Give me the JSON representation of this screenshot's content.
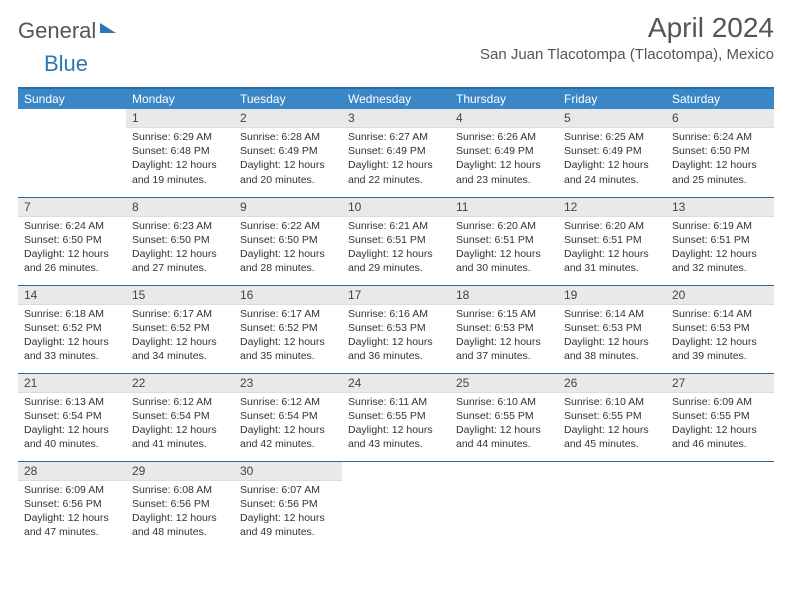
{
  "logo": {
    "text1": "General",
    "text2": "Blue"
  },
  "title": "April 2024",
  "location": "San Juan Tlacotompa (Tlacotompa), Mexico",
  "weekdays": [
    "Sunday",
    "Monday",
    "Tuesday",
    "Wednesday",
    "Thursday",
    "Friday",
    "Saturday"
  ],
  "colors": {
    "header_bg": "#3a87c8",
    "header_border": "#2a6ca0",
    "daynum_bg": "#e9e9e9",
    "cell_border": "#2a6ca0",
    "text": "#333333",
    "title": "#555555"
  },
  "weeks": [
    [
      {
        "day": null
      },
      {
        "day": "1",
        "sunrise": "Sunrise: 6:29 AM",
        "sunset": "Sunset: 6:48 PM",
        "daylight1": "Daylight: 12 hours",
        "daylight2": "and 19 minutes."
      },
      {
        "day": "2",
        "sunrise": "Sunrise: 6:28 AM",
        "sunset": "Sunset: 6:49 PM",
        "daylight1": "Daylight: 12 hours",
        "daylight2": "and 20 minutes."
      },
      {
        "day": "3",
        "sunrise": "Sunrise: 6:27 AM",
        "sunset": "Sunset: 6:49 PM",
        "daylight1": "Daylight: 12 hours",
        "daylight2": "and 22 minutes."
      },
      {
        "day": "4",
        "sunrise": "Sunrise: 6:26 AM",
        "sunset": "Sunset: 6:49 PM",
        "daylight1": "Daylight: 12 hours",
        "daylight2": "and 23 minutes."
      },
      {
        "day": "5",
        "sunrise": "Sunrise: 6:25 AM",
        "sunset": "Sunset: 6:49 PM",
        "daylight1": "Daylight: 12 hours",
        "daylight2": "and 24 minutes."
      },
      {
        "day": "6",
        "sunrise": "Sunrise: 6:24 AM",
        "sunset": "Sunset: 6:50 PM",
        "daylight1": "Daylight: 12 hours",
        "daylight2": "and 25 minutes."
      }
    ],
    [
      {
        "day": "7",
        "sunrise": "Sunrise: 6:24 AM",
        "sunset": "Sunset: 6:50 PM",
        "daylight1": "Daylight: 12 hours",
        "daylight2": "and 26 minutes."
      },
      {
        "day": "8",
        "sunrise": "Sunrise: 6:23 AM",
        "sunset": "Sunset: 6:50 PM",
        "daylight1": "Daylight: 12 hours",
        "daylight2": "and 27 minutes."
      },
      {
        "day": "9",
        "sunrise": "Sunrise: 6:22 AM",
        "sunset": "Sunset: 6:50 PM",
        "daylight1": "Daylight: 12 hours",
        "daylight2": "and 28 minutes."
      },
      {
        "day": "10",
        "sunrise": "Sunrise: 6:21 AM",
        "sunset": "Sunset: 6:51 PM",
        "daylight1": "Daylight: 12 hours",
        "daylight2": "and 29 minutes."
      },
      {
        "day": "11",
        "sunrise": "Sunrise: 6:20 AM",
        "sunset": "Sunset: 6:51 PM",
        "daylight1": "Daylight: 12 hours",
        "daylight2": "and 30 minutes."
      },
      {
        "day": "12",
        "sunrise": "Sunrise: 6:20 AM",
        "sunset": "Sunset: 6:51 PM",
        "daylight1": "Daylight: 12 hours",
        "daylight2": "and 31 minutes."
      },
      {
        "day": "13",
        "sunrise": "Sunrise: 6:19 AM",
        "sunset": "Sunset: 6:51 PM",
        "daylight1": "Daylight: 12 hours",
        "daylight2": "and 32 minutes."
      }
    ],
    [
      {
        "day": "14",
        "sunrise": "Sunrise: 6:18 AM",
        "sunset": "Sunset: 6:52 PM",
        "daylight1": "Daylight: 12 hours",
        "daylight2": "and 33 minutes."
      },
      {
        "day": "15",
        "sunrise": "Sunrise: 6:17 AM",
        "sunset": "Sunset: 6:52 PM",
        "daylight1": "Daylight: 12 hours",
        "daylight2": "and 34 minutes."
      },
      {
        "day": "16",
        "sunrise": "Sunrise: 6:17 AM",
        "sunset": "Sunset: 6:52 PM",
        "daylight1": "Daylight: 12 hours",
        "daylight2": "and 35 minutes."
      },
      {
        "day": "17",
        "sunrise": "Sunrise: 6:16 AM",
        "sunset": "Sunset: 6:53 PM",
        "daylight1": "Daylight: 12 hours",
        "daylight2": "and 36 minutes."
      },
      {
        "day": "18",
        "sunrise": "Sunrise: 6:15 AM",
        "sunset": "Sunset: 6:53 PM",
        "daylight1": "Daylight: 12 hours",
        "daylight2": "and 37 minutes."
      },
      {
        "day": "19",
        "sunrise": "Sunrise: 6:14 AM",
        "sunset": "Sunset: 6:53 PM",
        "daylight1": "Daylight: 12 hours",
        "daylight2": "and 38 minutes."
      },
      {
        "day": "20",
        "sunrise": "Sunrise: 6:14 AM",
        "sunset": "Sunset: 6:53 PM",
        "daylight1": "Daylight: 12 hours",
        "daylight2": "and 39 minutes."
      }
    ],
    [
      {
        "day": "21",
        "sunrise": "Sunrise: 6:13 AM",
        "sunset": "Sunset: 6:54 PM",
        "daylight1": "Daylight: 12 hours",
        "daylight2": "and 40 minutes."
      },
      {
        "day": "22",
        "sunrise": "Sunrise: 6:12 AM",
        "sunset": "Sunset: 6:54 PM",
        "daylight1": "Daylight: 12 hours",
        "daylight2": "and 41 minutes."
      },
      {
        "day": "23",
        "sunrise": "Sunrise: 6:12 AM",
        "sunset": "Sunset: 6:54 PM",
        "daylight1": "Daylight: 12 hours",
        "daylight2": "and 42 minutes."
      },
      {
        "day": "24",
        "sunrise": "Sunrise: 6:11 AM",
        "sunset": "Sunset: 6:55 PM",
        "daylight1": "Daylight: 12 hours",
        "daylight2": "and 43 minutes."
      },
      {
        "day": "25",
        "sunrise": "Sunrise: 6:10 AM",
        "sunset": "Sunset: 6:55 PM",
        "daylight1": "Daylight: 12 hours",
        "daylight2": "and 44 minutes."
      },
      {
        "day": "26",
        "sunrise": "Sunrise: 6:10 AM",
        "sunset": "Sunset: 6:55 PM",
        "daylight1": "Daylight: 12 hours",
        "daylight2": "and 45 minutes."
      },
      {
        "day": "27",
        "sunrise": "Sunrise: 6:09 AM",
        "sunset": "Sunset: 6:55 PM",
        "daylight1": "Daylight: 12 hours",
        "daylight2": "and 46 minutes."
      }
    ],
    [
      {
        "day": "28",
        "sunrise": "Sunrise: 6:09 AM",
        "sunset": "Sunset: 6:56 PM",
        "daylight1": "Daylight: 12 hours",
        "daylight2": "and 47 minutes."
      },
      {
        "day": "29",
        "sunrise": "Sunrise: 6:08 AM",
        "sunset": "Sunset: 6:56 PM",
        "daylight1": "Daylight: 12 hours",
        "daylight2": "and 48 minutes."
      },
      {
        "day": "30",
        "sunrise": "Sunrise: 6:07 AM",
        "sunset": "Sunset: 6:56 PM",
        "daylight1": "Daylight: 12 hours",
        "daylight2": "and 49 minutes."
      },
      {
        "day": null
      },
      {
        "day": null
      },
      {
        "day": null
      },
      {
        "day": null
      }
    ]
  ]
}
